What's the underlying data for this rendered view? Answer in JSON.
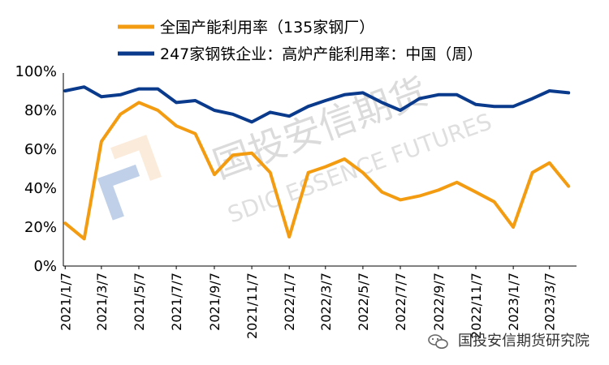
{
  "chart_data": {
    "type": "line",
    "title": "",
    "xlabel": "",
    "ylabel": "",
    "ylim": [
      0,
      100
    ],
    "yticks": [
      "0%",
      "20%",
      "40%",
      "60%",
      "80%",
      "100%"
    ],
    "xticks": [
      "2021/1/7",
      "2021/3/7",
      "2021/5/7",
      "2021/7/7",
      "2021/9/7",
      "2021/11/7",
      "2022/1/7",
      "2022/3/7",
      "2022/5/7",
      "2022/7/7",
      "2022/9/7",
      "2022/11/7",
      "2023/1/7",
      "2023/3/7"
    ],
    "grid": false,
    "legend_position": "top",
    "x": [
      "2021/1/7",
      "2021/2/7",
      "2021/3/7",
      "2021/4/7",
      "2021/5/7",
      "2021/6/7",
      "2021/7/7",
      "2021/8/7",
      "2021/9/7",
      "2021/10/7",
      "2021/11/7",
      "2021/12/7",
      "2022/1/7",
      "2022/2/7",
      "2022/3/7",
      "2022/4/7",
      "2022/5/7",
      "2022/6/7",
      "2022/7/7",
      "2022/8/7",
      "2022/9/7",
      "2022/10/7",
      "2022/11/7",
      "2022/12/7",
      "2023/1/7",
      "2023/2/7",
      "2023/3/7",
      "2023/4/7"
    ],
    "series": [
      {
        "name": "全国产能利用率（135家钢厂）",
        "color": "#F39C12",
        "values": [
          22,
          14,
          64,
          78,
          84,
          80,
          72,
          68,
          47,
          57,
          58,
          48,
          15,
          48,
          51,
          55,
          48,
          38,
          34,
          36,
          39,
          43,
          38,
          33,
          20,
          48,
          53,
          41
        ]
      },
      {
        "name": "247家钢铁企业：高炉产能利用率：中国（周）",
        "color": "#0A3A8C",
        "values": [
          90,
          92,
          87,
          88,
          91,
          91,
          84,
          85,
          80,
          78,
          74,
          79,
          77,
          82,
          85,
          88,
          89,
          84,
          80,
          86,
          88,
          88,
          83,
          82,
          82,
          86,
          90,
          89
        ]
      }
    ]
  },
  "watermark": {
    "company": "国投安信期货",
    "english": "SDIC ESSENCE FUTURES",
    "footer": "国投安信期货研究院"
  },
  "colors": {
    "logo_blue": "#4A7CC0",
    "logo_orange": "#F6C89A",
    "axis": "#000000"
  },
  "icons": {
    "footer": "wechat-icon"
  }
}
